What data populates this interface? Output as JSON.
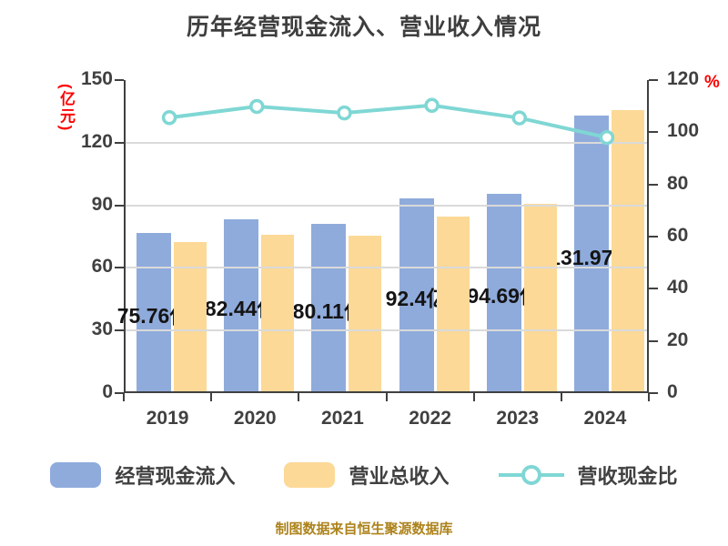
{
  "title": "历年经营现金流入、营业收入情况",
  "footer": "制图数据来自恒生聚源数据库",
  "colors": {
    "cash_bar": "#8FABDC",
    "revenue_bar": "#FCD997",
    "ratio_line": "#7FD7D4",
    "axis_text": "#404040",
    "unit_text": "#FF0000",
    "bar_label_text": "#141414",
    "gridline": "#DADADA",
    "footer_text": "#AD831C"
  },
  "left_axis": {
    "unit": "(亿元)",
    "ticks": [
      0,
      30,
      60,
      90,
      120,
      150
    ],
    "max": 150
  },
  "right_axis": {
    "unit": "%",
    "ticks": [
      0,
      20,
      40,
      60,
      80,
      100,
      120
    ],
    "max": 120
  },
  "chart_data": {
    "type": "bar+line",
    "title": "历年经营现金流入、营业收入情况",
    "categories": [
      "2019",
      "2020",
      "2021",
      "2022",
      "2023",
      "2024"
    ],
    "grid": true,
    "legend_position": "bottom",
    "left_ylim": [
      0,
      150
    ],
    "right_ylim": [
      0,
      120
    ],
    "series": [
      {
        "name": "经营现金流入",
        "type": "bar",
        "axis": "left",
        "color": "#8FABDC",
        "values": [
          75.76,
          82.44,
          80.11,
          92.4,
          94.69,
          131.97
        ],
        "labels": [
          "75.76亿",
          "82.44亿",
          "80.11亿",
          "92.4亿",
          "94.69亿",
          "131.97亿"
        ]
      },
      {
        "name": "营业总收入",
        "type": "bar",
        "axis": "left",
        "color": "#FCD997",
        "values": [
          71.7,
          75.0,
          74.6,
          83.8,
          89.7,
          134.7
        ]
      },
      {
        "name": "营收现金比",
        "type": "line",
        "axis": "right",
        "color": "#7FD7D4",
        "values": [
          105.6,
          109.9,
          107.4,
          110.3,
          105.5,
          98.0
        ]
      }
    ]
  }
}
